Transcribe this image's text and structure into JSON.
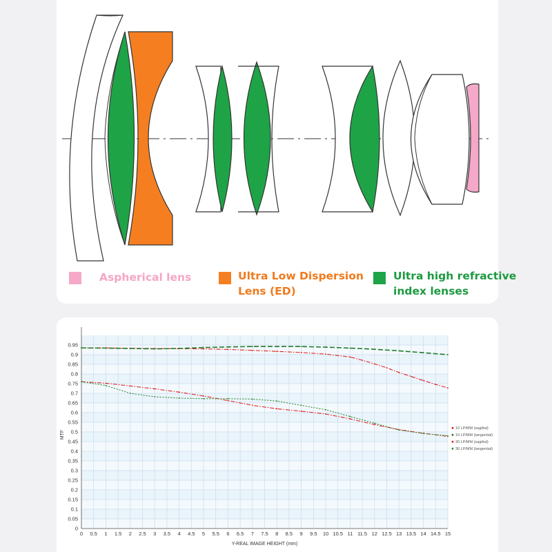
{
  "legend": {
    "aspherical": {
      "label": "Aspherical lens",
      "color": "#f6a8c8",
      "text_color": "#f4a6c4"
    },
    "ed": {
      "label_line1": "Ultra Low Dispersion",
      "label_line2": "Lens (ED)",
      "color": "#f57f20",
      "text_color": "#f07a1c"
    },
    "uhr": {
      "label_line1": "Ultra high refractive",
      "label_line2": "index lenses",
      "color": "#1ea446",
      "text_color": "#1d9a40"
    }
  },
  "chart_data": {
    "type": "line",
    "xlabel": "Y-REAL IMAGE HEIGHT (mm)",
    "ylabel": "MTF",
    "xlim": [
      0,
      15
    ],
    "ylim": [
      0,
      1
    ],
    "x_ticks": [
      "0",
      "0.5",
      "1",
      "1.5",
      "2",
      "2.5",
      "3",
      "3.5",
      "4",
      "4.5",
      "5",
      "5.5",
      "6",
      "6.5",
      "7",
      "7.5",
      "8",
      "8.5",
      "9",
      "9.5",
      "10",
      "10.5",
      "11",
      "11.5",
      "12",
      "12.5",
      "13",
      "13.5",
      "14",
      "14.5",
      "15"
    ],
    "y_ticks": [
      "0",
      "0.05",
      "0.1",
      "0.15",
      "0.2",
      "0.25",
      "0.3",
      "0.35",
      "0.4",
      "0.45",
      "0.5",
      "0.55",
      "0.6",
      "0.65",
      "0.7",
      "0.75",
      "0.8",
      "0.85",
      "0.9",
      "0.95"
    ],
    "grid": true,
    "legend_position": "right",
    "series": [
      {
        "name": "10 LP/MM (sagittal)",
        "color": "#e02020",
        "style": "dashdot",
        "x": [
          0,
          1,
          2,
          3,
          4,
          5,
          6,
          7,
          8,
          9,
          10,
          11,
          11.5,
          12,
          12.5,
          13,
          13.5,
          14,
          14.5,
          15
        ],
        "y": [
          0.935,
          0.935,
          0.933,
          0.932,
          0.931,
          0.93,
          0.927,
          0.922,
          0.917,
          0.911,
          0.903,
          0.888,
          0.871,
          0.852,
          0.832,
          0.808,
          0.787,
          0.766,
          0.746,
          0.728
        ]
      },
      {
        "name": "10 LP/MM (tangential)",
        "color": "#1e7a2c",
        "style": "dashed",
        "x": [
          0,
          1,
          2,
          3,
          4,
          5,
          6,
          7,
          8,
          9,
          10,
          11,
          12,
          13,
          14,
          15
        ],
        "y": [
          0.935,
          0.934,
          0.932,
          0.93,
          0.932,
          0.937,
          0.94,
          0.942,
          0.942,
          0.942,
          0.939,
          0.934,
          0.928,
          0.92,
          0.91,
          0.9
        ]
      },
      {
        "name": "30 LP/MM (sagittal)",
        "color": "#e02020",
        "style": "dashdot",
        "x": [
          0,
          1,
          2,
          3,
          4,
          5,
          6,
          7,
          8,
          9,
          10,
          11,
          12,
          13,
          14,
          15
        ],
        "y": [
          0.76,
          0.752,
          0.738,
          0.723,
          0.706,
          0.686,
          0.662,
          0.638,
          0.62,
          0.607,
          0.593,
          0.568,
          0.538,
          0.512,
          0.493,
          0.477
        ]
      },
      {
        "name": "30 LP/MM (tangential)",
        "color": "#2e8a2e",
        "style": "dotted",
        "x": [
          0,
          1,
          2,
          3,
          4,
          5,
          6,
          7,
          8,
          9,
          10,
          11,
          12,
          13,
          14,
          15
        ],
        "y": [
          0.76,
          0.74,
          0.7,
          0.682,
          0.675,
          0.672,
          0.672,
          0.67,
          0.66,
          0.638,
          0.615,
          0.58,
          0.545,
          0.51,
          0.492,
          0.48
        ]
      }
    ]
  }
}
